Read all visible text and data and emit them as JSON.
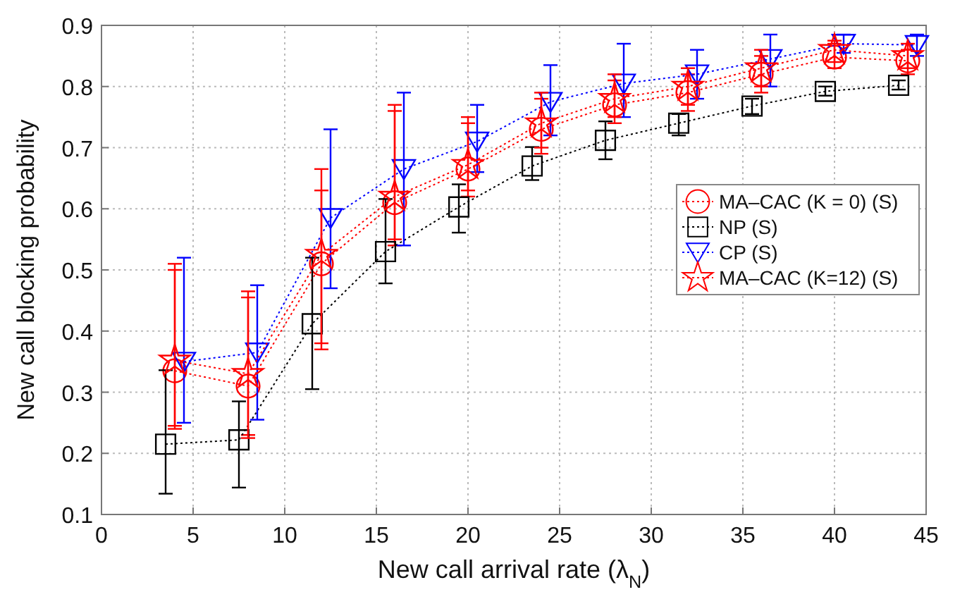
{
  "chart_data": {
    "type": "line",
    "xlabel": "New call arrival rate (λ$_{N}$)",
    "ylabel": "New call blocking probability",
    "xlim": [
      0,
      45
    ],
    "xticks": [
      0,
      5,
      10,
      15,
      20,
      25,
      30,
      35,
      40,
      45
    ],
    "ylim": [
      0.1,
      0.9
    ],
    "yticks": [
      0.1,
      0.2,
      0.3,
      0.4,
      0.5,
      0.6,
      0.7,
      0.8,
      0.9
    ],
    "grid": true,
    "legend": "right",
    "line_style": "dotted",
    "series": [
      {
        "name": "MA–CAC (K = 0) (S)",
        "color": "#ff0000",
        "marker": "circle",
        "x": [
          4,
          8,
          12,
          16,
          20,
          24,
          28,
          32,
          36,
          40,
          44
        ],
        "values": [
          0.335,
          0.31,
          0.51,
          0.61,
          0.665,
          0.73,
          0.77,
          0.79,
          0.82,
          0.848,
          0.842
        ],
        "errors": [
          [
            0.24,
            0.5
          ],
          [
            0.23,
            0.455
          ],
          [
            0.37,
            0.63
          ],
          [
            0.54,
            0.76
          ],
          [
            0.62,
            0.74
          ],
          [
            0.69,
            0.78
          ],
          [
            0.74,
            0.81
          ],
          [
            0.76,
            0.82
          ],
          [
            0.79,
            0.85
          ],
          [
            0.83,
            0.87
          ],
          [
            0.82,
            0.86
          ]
        ]
      },
      {
        "name": "NP (S)",
        "color": "#000000",
        "marker": "square",
        "x": [
          3.5,
          7.5,
          11.5,
          15.5,
          19.5,
          23.5,
          27.5,
          31.5,
          35.5,
          39.5,
          43.5
        ],
        "values": [
          0.215,
          0.222,
          0.412,
          0.53,
          0.603,
          0.67,
          0.712,
          0.74,
          0.768,
          0.792,
          0.802
        ],
        "errors": [
          [
            0.134,
            0.336
          ],
          [
            0.144,
            0.285
          ],
          [
            0.305,
            0.52
          ],
          [
            0.478,
            0.616
          ],
          [
            0.561,
            0.64
          ],
          [
            0.647,
            0.701
          ],
          [
            0.681,
            0.743
          ],
          [
            0.72,
            0.755
          ],
          [
            0.755,
            0.78
          ],
          [
            0.785,
            0.8
          ],
          [
            0.795,
            0.81
          ]
        ]
      },
      {
        "name": "CP (S)",
        "color": "#0000ff",
        "marker": "triangle",
        "x": [
          4.5,
          8.5,
          12.5,
          16.5,
          20.5,
          24.5,
          28.5,
          32.5,
          36.5,
          40.5,
          44.5
        ],
        "values": [
          0.35,
          0.365,
          0.585,
          0.665,
          0.71,
          0.775,
          0.805,
          0.82,
          0.845,
          0.87,
          0.868
        ],
        "errors": [
          [
            0.25,
            0.52
          ],
          [
            0.255,
            0.475
          ],
          [
            0.47,
            0.73
          ],
          [
            0.54,
            0.79
          ],
          [
            0.66,
            0.77
          ],
          [
            0.72,
            0.835
          ],
          [
            0.75,
            0.87
          ],
          [
            0.78,
            0.86
          ],
          [
            0.8,
            0.885
          ],
          [
            0.855,
            0.885
          ],
          [
            0.85,
            0.885
          ]
        ]
      },
      {
        "name": "MA–CAC (K=12) (S)",
        "color": "#ff0000",
        "marker": "star",
        "x": [
          4,
          8,
          12,
          16,
          20,
          24,
          28,
          32,
          36,
          40,
          44
        ],
        "values": [
          0.352,
          0.33,
          0.525,
          0.62,
          0.672,
          0.74,
          0.78,
          0.8,
          0.83,
          0.86,
          0.85
        ],
        "errors": [
          [
            0.245,
            0.51
          ],
          [
            0.225,
            0.465
          ],
          [
            0.38,
            0.665
          ],
          [
            0.55,
            0.77
          ],
          [
            0.63,
            0.75
          ],
          [
            0.7,
            0.79
          ],
          [
            0.75,
            0.82
          ],
          [
            0.77,
            0.83
          ],
          [
            0.8,
            0.86
          ],
          [
            0.84,
            0.875
          ],
          [
            0.83,
            0.87
          ]
        ]
      }
    ]
  }
}
